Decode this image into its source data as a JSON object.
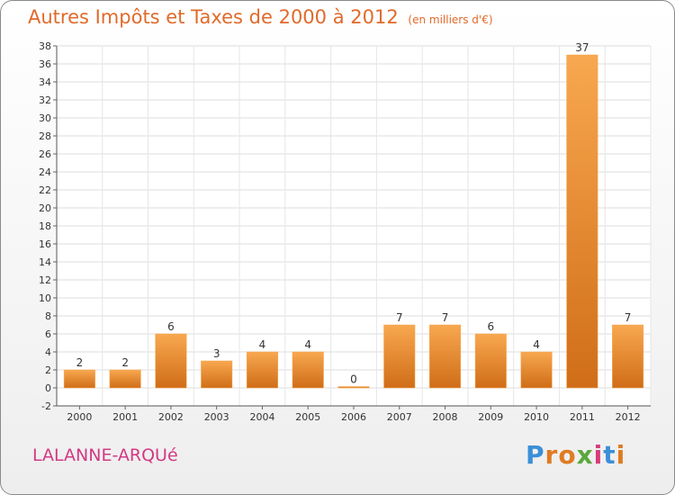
{
  "title": "Autres Impôts et Taxes de 2000 à 2012",
  "unit_note": "(en milliers d'€)",
  "commune": "LALANNE-ARQUé",
  "brand": {
    "letters": [
      "P",
      "r",
      "o",
      "x",
      "i",
      "t",
      "i"
    ],
    "colors": [
      "#3b8fd8",
      "#e07b22",
      "#e07b22",
      "#5aa83c",
      "#d63c7a",
      "#3b8fd8",
      "#e07b22"
    ]
  },
  "colors": {
    "bar_light": "#f8a850",
    "bar_dark": "#d06d18",
    "title": "#e06a2b",
    "commune": "#d23a84"
  },
  "chart_data": {
    "type": "bar",
    "categories": [
      "2000",
      "2001",
      "2002",
      "2003",
      "2004",
      "2005",
      "2006",
      "2007",
      "2008",
      "2009",
      "2010",
      "2011",
      "2012"
    ],
    "values": [
      2,
      2,
      6,
      3,
      4,
      4,
      0,
      7,
      7,
      6,
      4,
      37,
      7
    ],
    "title": "Autres Impôts et Taxes de 2000 à 2012",
    "ylim": [
      -2,
      38
    ],
    "yticks": [
      -2,
      0,
      2,
      4,
      6,
      8,
      10,
      12,
      14,
      16,
      18,
      20,
      22,
      24,
      26,
      28,
      30,
      32,
      34,
      36,
      38
    ],
    "grid": true,
    "data_labels": true
  }
}
